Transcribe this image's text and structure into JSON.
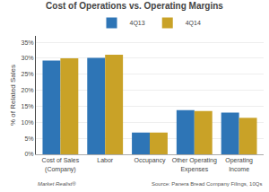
{
  "chart_data": {
    "type": "bar",
    "title": "Cost of Operations vs. Operating Margins",
    "categories": [
      "Cost of Sales\n(Company)",
      "Labor",
      "Occupancy",
      "Other Operating\nExpenses",
      "Operating\nIncome"
    ],
    "series": [
      {
        "name": "4Q13",
        "color": "#2E75B6",
        "values": [
          29.3,
          30.1,
          6.8,
          13.8,
          13.0
        ]
      },
      {
        "name": "4Q14",
        "color": "#C9A227",
        "values": [
          30.0,
          31.1,
          6.8,
          13.5,
          11.4
        ]
      }
    ],
    "ylabel": "% of Related Sales",
    "ylim": [
      0,
      37
    ],
    "yticks": [
      {
        "value": 0,
        "label": "0%"
      },
      {
        "value": 5,
        "label": "5%"
      },
      {
        "value": 10,
        "label": "10%"
      },
      {
        "value": 15,
        "label": "15%"
      },
      {
        "value": 20,
        "label": "20%"
      },
      {
        "value": 25,
        "label": "25%"
      },
      {
        "value": 30,
        "label": "30%"
      },
      {
        "value": 35,
        "label": "35%"
      }
    ],
    "grid": true,
    "legend": "upper center",
    "annotations": [
      "Market Realist®",
      "Source: Panera Bread Company Filings, 10Qs"
    ]
  }
}
